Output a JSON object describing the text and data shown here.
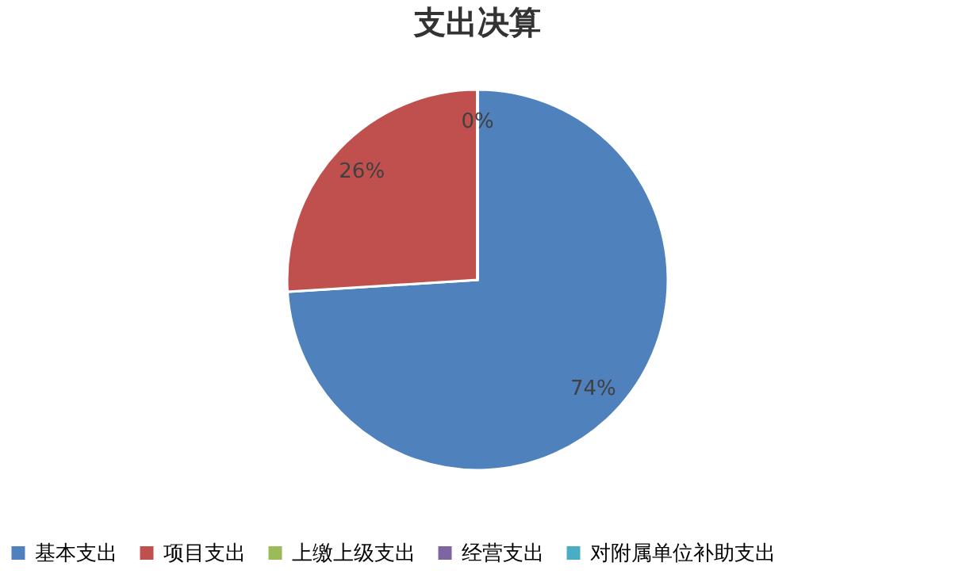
{
  "chart_data": {
    "type": "pie",
    "title": "支出决算",
    "categories": [
      "基本支出",
      "项目支出",
      "上缴上级支出",
      "经营支出",
      "对附属单位补助支出"
    ],
    "values": [
      74,
      26,
      0,
      0,
      0
    ],
    "colors": [
      "#4f81bd",
      "#c0504d",
      "#9bbb59",
      "#8064a2",
      "#4bacc6"
    ],
    "value_labels": [
      "74%",
      "26%",
      "0%",
      null,
      null
    ],
    "legend": "bottom"
  }
}
